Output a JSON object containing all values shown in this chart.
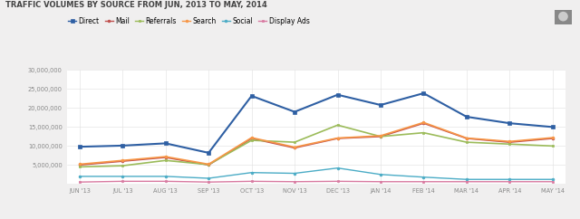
{
  "title": "TRAFFIC VOLUMES BY SOURCE FROM JUN, 2013 TO MAY, 2014",
  "x_labels": [
    "JUN '13",
    "JUL '13",
    "AUG '13",
    "SEP '13",
    "OCT '13",
    "NOV '13",
    "DEC '13",
    "JAN '14",
    "FEB '14",
    "MAR '14",
    "APR '14",
    "MAY '14"
  ],
  "series": [
    {
      "name": "Direct",
      "color": "#2e5fa3",
      "marker": "s",
      "linewidth": 1.5,
      "markersize": 2.5,
      "values": [
        9800000,
        10100000,
        10700000,
        8200000,
        23200000,
        19000000,
        23500000,
        20800000,
        23900000,
        17700000,
        16000000,
        15000000
      ]
    },
    {
      "name": "Mail",
      "color": "#c0504d",
      "marker": "o",
      "linewidth": 1.2,
      "markersize": 2.0,
      "values": [
        5000000,
        6000000,
        7000000,
        5000000,
        12000000,
        9500000,
        12000000,
        12500000,
        16000000,
        12000000,
        11000000,
        12000000
      ]
    },
    {
      "name": "Referrals",
      "color": "#9bbb59",
      "marker": "s",
      "linewidth": 1.2,
      "markersize": 2.0,
      "values": [
        4500000,
        4800000,
        6200000,
        5100000,
        11500000,
        11000000,
        15500000,
        12500000,
        13500000,
        11000000,
        10500000,
        10000000
      ]
    },
    {
      "name": "Search",
      "color": "#f79646",
      "marker": "o",
      "linewidth": 1.2,
      "markersize": 2.0,
      "values": [
        5200000,
        6200000,
        7200000,
        5200000,
        12200000,
        9700000,
        12100000,
        12700000,
        16200000,
        12100000,
        11200000,
        12200000
      ]
    },
    {
      "name": "Social",
      "color": "#4bacc6",
      "marker": "o",
      "linewidth": 1.0,
      "markersize": 2.0,
      "values": [
        2000000,
        2000000,
        2000000,
        1500000,
        3000000,
        2800000,
        4200000,
        2500000,
        1800000,
        1200000,
        1200000,
        1200000
      ]
    },
    {
      "name": "Display Ads",
      "color": "#d879a0",
      "marker": "s",
      "linewidth": 1.0,
      "markersize": 2.0,
      "values": [
        500000,
        700000,
        700000,
        500000,
        700000,
        600000,
        700000,
        600000,
        600000,
        600000,
        600000,
        600000
      ]
    }
  ],
  "ylim": [
    0,
    30000000
  ],
  "yticks": [
    0,
    5000000,
    10000000,
    15000000,
    20000000,
    25000000,
    30000000
  ],
  "bg_color": "#f0efef",
  "plot_bg_color": "#ffffff",
  "grid_color": "#e0e0e0",
  "title_fontsize": 6.0,
  "legend_fontsize": 5.5,
  "tick_fontsize": 4.8,
  "title_color": "#444444",
  "tick_color": "#888888"
}
